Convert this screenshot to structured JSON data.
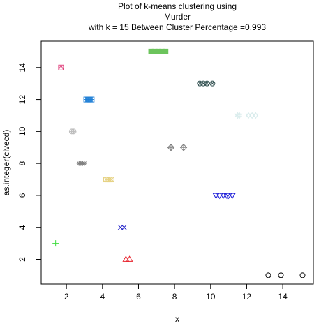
{
  "chart_data": {
    "type": "scatter",
    "title_lines": [
      "Plot of k-means clustering using",
      "Murder",
      "with  k = 15 Between Cluster Percentage =0.993"
    ],
    "xlabel": "x",
    "ylabel": "as.integer(clvecd)",
    "xlim": [
      0.6,
      15.7
    ],
    "ylim": [
      0.45,
      15.65
    ],
    "x_ticks": [
      "2",
      "4",
      "6",
      "8",
      "10",
      "12",
      "14"
    ],
    "y_ticks": [
      "2",
      "4",
      "6",
      "8",
      "10",
      "12",
      "14"
    ],
    "grid": false,
    "legend": "none",
    "series": [
      {
        "pch": 1,
        "color": "#000000",
        "y": 1,
        "x": [
          13.2,
          13.9,
          15.1
        ]
      },
      {
        "pch": 2,
        "color": "#df536b",
        "y": 2,
        "x": [
          5.3,
          5.5
        ]
      },
      {
        "pch": 3,
        "color": "#61d04f",
        "y": 3,
        "x": [
          1.4
        ]
      },
      {
        "pch": 4,
        "color": "#2297e6",
        "y": 4,
        "x": [
          5.0,
          5.2
        ]
      },
      {
        "pch": 5,
        "color": "#28e2e5",
        "y": 5,
        "x": []
      },
      {
        "pch": 6,
        "color": "#cd0bbc",
        "y": 6,
        "x": [
          10.3,
          10.5,
          10.7,
          10.9,
          11.0,
          11.2
        ]
      },
      {
        "pch": 7,
        "color": "#f5c710",
        "y": 7,
        "x": [
          4.2,
          4.3,
          4.4,
          4.5
        ]
      },
      {
        "pch": 8,
        "color": "#9e9e9e",
        "y": 8,
        "x": [
          2.7,
          2.8,
          2.9,
          3.0
        ]
      },
      {
        "pch": 9,
        "color": "#000000",
        "y": 9,
        "x": [
          7.8,
          8.5
        ]
      },
      {
        "pch": 10,
        "color": "#df536b",
        "y": 10,
        "x": [
          2.3,
          2.4
        ]
      },
      {
        "pch": 11,
        "color": "#61d04f",
        "y": 11,
        "x": [
          11.5,
          11.6,
          12.1,
          12.3,
          12.5
        ]
      },
      {
        "pch": 12,
        "color": "#2297e6",
        "y": 12,
        "x": [
          3.1,
          3.2,
          3.3,
          3.4
        ]
      },
      {
        "pch": 13,
        "color": "#28e2e5",
        "y": 13,
        "x": [
          9.4,
          9.6,
          9.8,
          10.1
        ]
      },
      {
        "pch": 14,
        "color": "#cd0bbc",
        "y": 14,
        "x": [
          1.7
        ]
      },
      {
        "pch": 15,
        "color": "#f5c710",
        "y": 15,
        "x": [
          6.7,
          6.9,
          7.1,
          7.3,
          7.5
        ]
      }
    ],
    "colors_by_cluster": {
      "1": "#000000",
      "2": "#e8222c",
      "3": "#3fdc3f",
      "4": "#2424c8",
      "5": "#28e2e5",
      "6": "#1a1ad8",
      "7": "#e6d284",
      "8": "#808080",
      "9": "#7d7d7d",
      "10": "#bdbdbd",
      "11": "#d9ecec",
      "12": "#1e7fd6",
      "13": "#2f4f4f",
      "14": "#e0457f",
      "15": "#6cc45c"
    }
  }
}
